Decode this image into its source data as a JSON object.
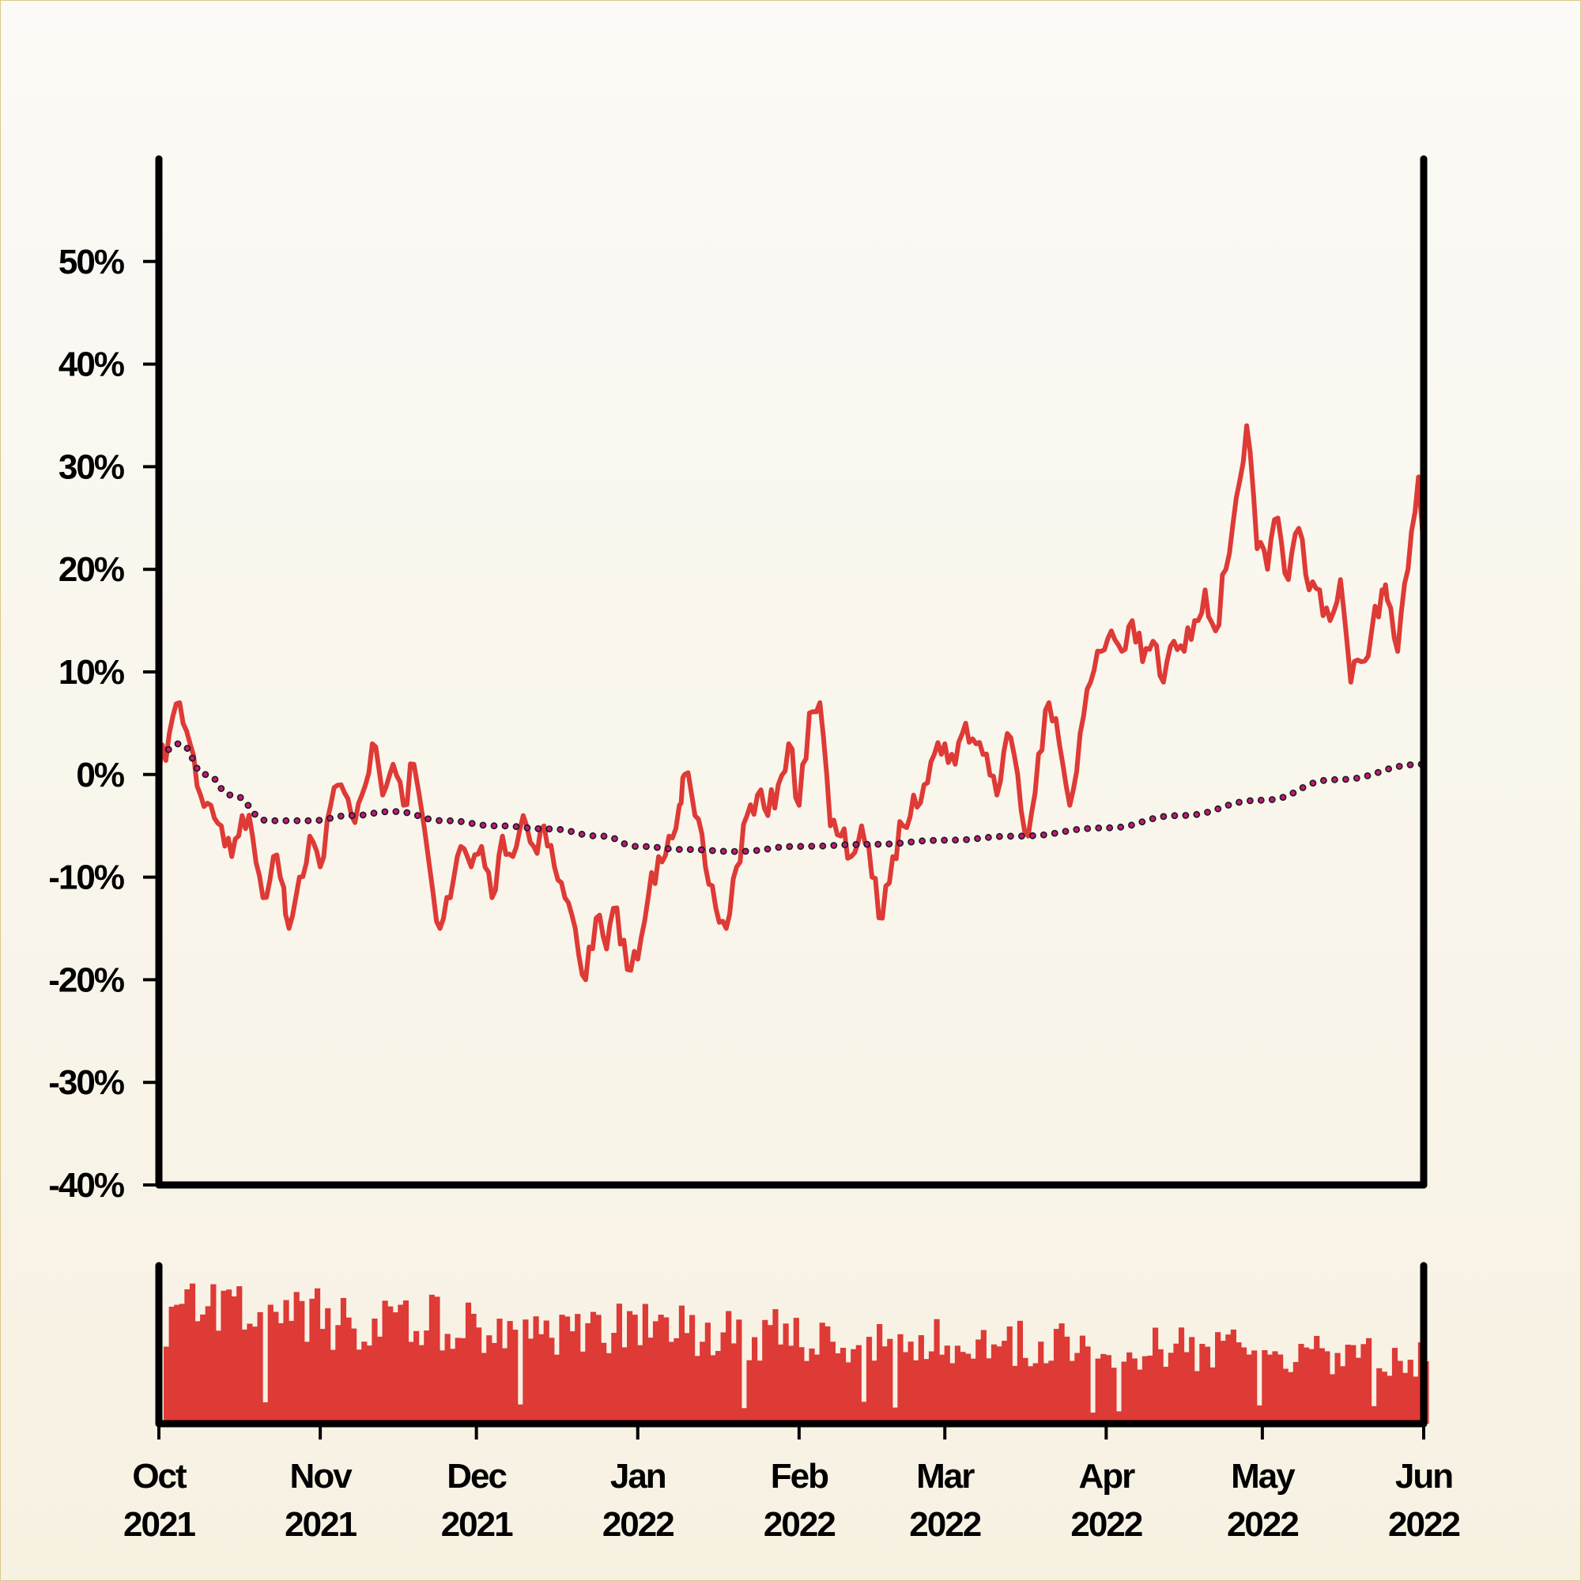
{
  "chart_data": {
    "type": "line",
    "title": "",
    "xlabel": "",
    "ylabel": "",
    "x_range": [
      "2021-10-01",
      "2022-06-01"
    ],
    "ylim": [
      -40,
      60
    ],
    "y_ticks": [
      -40,
      -30,
      -20,
      -10,
      0,
      10,
      20,
      30,
      40,
      50
    ],
    "y_tick_labels": [
      "-40%",
      "-30%",
      "-20%",
      "-10%",
      "0%",
      "10%",
      "20%",
      "30%",
      "40%",
      "50%"
    ],
    "x_ticks": [
      {
        "date": "2021-10-01",
        "month": "Oct",
        "year": "2021"
      },
      {
        "date": "2021-11-01",
        "month": "Nov",
        "year": "2021"
      },
      {
        "date": "2021-12-01",
        "month": "Dec",
        "year": "2021"
      },
      {
        "date": "2022-01-01",
        "month": "Jan",
        "year": "2022"
      },
      {
        "date": "2022-02-01",
        "month": "Feb",
        "year": "2022"
      },
      {
        "date": "2022-03-01",
        "month": "Mar",
        "year": "2022"
      },
      {
        "date": "2022-04-01",
        "month": "Apr",
        "year": "2022"
      },
      {
        "date": "2022-05-01",
        "month": "May",
        "year": "2022"
      },
      {
        "date": "2022-06-01",
        "month": "Jun",
        "year": "2022"
      }
    ],
    "grid": false,
    "colors": {
      "return_line": "#de3a36",
      "trend_line": "#c2187a",
      "trend_outline": "#1a1a1a",
      "volume_bars": "#de3a36",
      "axes": "#000000"
    },
    "series": [
      {
        "style": "solid",
        "points": [
          [
            "2021-10-01",
            0
          ],
          [
            "2021-10-03",
            4
          ],
          [
            "2021-10-05",
            7
          ],
          [
            "2021-10-07",
            3
          ],
          [
            "2021-10-09",
            -2
          ],
          [
            "2021-10-11",
            -3
          ],
          [
            "2021-10-13",
            -5
          ],
          [
            "2021-10-15",
            -8
          ],
          [
            "2021-10-17",
            -4
          ],
          [
            "2021-10-19",
            -6
          ],
          [
            "2021-10-21",
            -12
          ],
          [
            "2021-10-23",
            -8
          ],
          [
            "2021-10-25",
            -11
          ],
          [
            "2021-10-26",
            -15
          ],
          [
            "2021-10-28",
            -10
          ],
          [
            "2021-10-30",
            -6
          ],
          [
            "2021-11-01",
            -9
          ],
          [
            "2021-11-03",
            -3
          ],
          [
            "2021-11-05",
            -1
          ],
          [
            "2021-11-07",
            -4
          ],
          [
            "2021-11-09",
            -2
          ],
          [
            "2021-11-11",
            3
          ],
          [
            "2021-11-13",
            -2
          ],
          [
            "2021-11-15",
            1
          ],
          [
            "2021-11-17",
            -3
          ],
          [
            "2021-11-19",
            1
          ],
          [
            "2021-11-22",
            -9
          ],
          [
            "2021-11-24",
            -15
          ],
          [
            "2021-11-26",
            -12
          ],
          [
            "2021-11-28",
            -7
          ],
          [
            "2021-11-30",
            -9
          ],
          [
            "2021-12-02",
            -7
          ],
          [
            "2021-12-04",
            -12
          ],
          [
            "2021-12-06",
            -6
          ],
          [
            "2021-12-08",
            -8
          ],
          [
            "2021-12-10",
            -4
          ],
          [
            "2021-12-12",
            -7
          ],
          [
            "2021-12-14",
            -5
          ],
          [
            "2021-12-16",
            -9
          ],
          [
            "2021-12-18",
            -12
          ],
          [
            "2021-12-20",
            -15
          ],
          [
            "2021-12-22",
            -20
          ],
          [
            "2021-12-24",
            -14
          ],
          [
            "2021-12-26",
            -17
          ],
          [
            "2021-12-28",
            -13
          ],
          [
            "2021-12-30",
            -19
          ],
          [
            "2022-01-01",
            -18
          ],
          [
            "2022-01-03",
            -12
          ],
          [
            "2022-01-05",
            -8
          ],
          [
            "2022-01-07",
            -6
          ],
          [
            "2022-01-09",
            -3
          ],
          [
            "2022-01-10",
            0
          ],
          [
            "2022-01-12",
            -4
          ],
          [
            "2022-01-14",
            -9
          ],
          [
            "2022-01-16",
            -13
          ],
          [
            "2022-01-18",
            -15
          ],
          [
            "2022-01-20",
            -9
          ],
          [
            "2022-01-22",
            -4
          ],
          [
            "2022-01-24",
            -2
          ],
          [
            "2022-01-26",
            -4
          ],
          [
            "2022-01-28",
            -1
          ],
          [
            "2022-01-30",
            3
          ],
          [
            "2022-02-01",
            -3
          ],
          [
            "2022-02-03",
            6
          ],
          [
            "2022-02-05",
            7
          ],
          [
            "2022-02-07",
            -5
          ],
          [
            "2022-02-09",
            -6
          ],
          [
            "2022-02-11",
            -8
          ],
          [
            "2022-02-13",
            -5
          ],
          [
            "2022-02-15",
            -10
          ],
          [
            "2022-02-17",
            -14
          ],
          [
            "2022-02-19",
            -8
          ],
          [
            "2022-02-21",
            -5
          ],
          [
            "2022-02-23",
            -2
          ],
          [
            "2022-02-25",
            -1
          ],
          [
            "2022-02-27",
            2
          ],
          [
            "2022-03-01",
            3
          ],
          [
            "2022-03-03",
            1
          ],
          [
            "2022-03-05",
            5
          ],
          [
            "2022-03-07",
            3
          ],
          [
            "2022-03-09",
            2
          ],
          [
            "2022-03-11",
            -2
          ],
          [
            "2022-03-13",
            4
          ],
          [
            "2022-03-15",
            0
          ],
          [
            "2022-03-17",
            -6
          ],
          [
            "2022-03-19",
            2
          ],
          [
            "2022-03-21",
            7
          ],
          [
            "2022-03-23",
            3
          ],
          [
            "2022-03-25",
            -3
          ],
          [
            "2022-03-27",
            4
          ],
          [
            "2022-03-29",
            9
          ],
          [
            "2022-03-31",
            12
          ],
          [
            "2022-04-02",
            14
          ],
          [
            "2022-04-04",
            12
          ],
          [
            "2022-04-06",
            15
          ],
          [
            "2022-04-08",
            11
          ],
          [
            "2022-04-10",
            13
          ],
          [
            "2022-04-12",
            9
          ],
          [
            "2022-04-14",
            13
          ],
          [
            "2022-04-16",
            12
          ],
          [
            "2022-04-18",
            15
          ],
          [
            "2022-04-20",
            18
          ],
          [
            "2022-04-22",
            14
          ],
          [
            "2022-04-24",
            20
          ],
          [
            "2022-04-26",
            27
          ],
          [
            "2022-04-28",
            34
          ],
          [
            "2022-04-30",
            22
          ],
          [
            "2022-05-02",
            20
          ],
          [
            "2022-05-04",
            25
          ],
          [
            "2022-05-06",
            19
          ],
          [
            "2022-05-08",
            24
          ],
          [
            "2022-05-10",
            18
          ],
          [
            "2022-05-12",
            18
          ],
          [
            "2022-05-14",
            15
          ],
          [
            "2022-05-16",
            19
          ],
          [
            "2022-05-18",
            9
          ],
          [
            "2022-05-20",
            11
          ],
          [
            "2022-05-22",
            14
          ],
          [
            "2022-05-24",
            18
          ],
          [
            "2022-05-25",
            17
          ],
          [
            "2022-05-27",
            12
          ],
          [
            "2022-05-29",
            20
          ],
          [
            "2022-05-31",
            29
          ],
          [
            "2022-06-01",
            22
          ]
        ]
      },
      {
        "style": "dotted",
        "points": [
          [
            "2021-10-01",
            2
          ],
          [
            "2021-10-05",
            3
          ],
          [
            "2021-10-10",
            0
          ],
          [
            "2021-10-15",
            -2
          ],
          [
            "2021-10-22",
            -4.5
          ],
          [
            "2021-10-30",
            -4.5
          ],
          [
            "2021-11-07",
            -4
          ],
          [
            "2021-11-15",
            -3.6
          ],
          [
            "2021-11-25",
            -4.5
          ],
          [
            "2021-12-05",
            -5
          ],
          [
            "2021-12-15",
            -5.3
          ],
          [
            "2021-12-25",
            -6
          ],
          [
            "2022-01-01",
            -7
          ],
          [
            "2022-01-10",
            -7.3
          ],
          [
            "2022-01-20",
            -7.5
          ],
          [
            "2022-02-01",
            -7
          ],
          [
            "2022-02-15",
            -6.8
          ],
          [
            "2022-03-01",
            -6.4
          ],
          [
            "2022-03-15",
            -6
          ],
          [
            "2022-04-01",
            -5.2
          ],
          [
            "2022-04-15",
            -4
          ],
          [
            "2022-05-01",
            -2.5
          ],
          [
            "2022-05-15",
            -0.5
          ],
          [
            "2022-06-01",
            1
          ]
        ]
      }
    ],
    "volume": {
      "relative_level_start": 0.75,
      "relative_level_end": 0.45
    }
  }
}
